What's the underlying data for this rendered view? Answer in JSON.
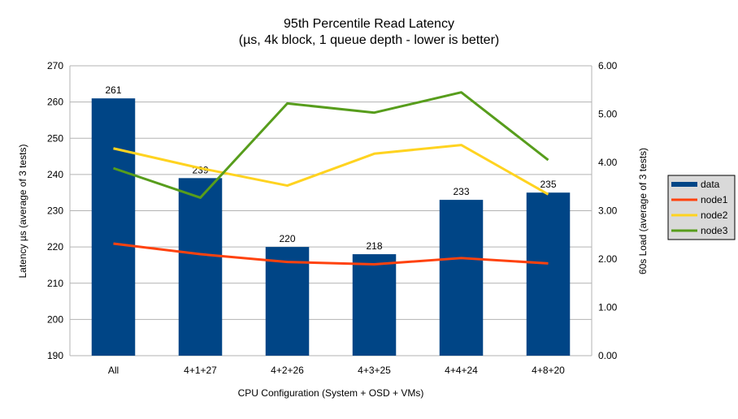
{
  "chart_data": {
    "type": "bar",
    "title": "95th Percentile Read Latency",
    "subtitle": "(µs, 4k block, 1 queue depth - lower is better)",
    "xlabel": "CPU Configuration (System + OSD + VMs)",
    "ylabel": "Latency µs (average of 3 tests)",
    "y2label": "60s Load (average of 3 tests)",
    "categories": [
      "All",
      "4+1+27",
      "4+2+26",
      "4+3+25",
      "4+4+24",
      "4+8+20"
    ],
    "ylim": [
      190,
      270
    ],
    "yticks": [
      "190",
      "200",
      "210",
      "220",
      "230",
      "240",
      "250",
      "260",
      "270"
    ],
    "y2lim": [
      0,
      6
    ],
    "y2ticks": [
      "0.00",
      "1.00",
      "2.00",
      "3.00",
      "4.00",
      "5.00",
      "6.00"
    ],
    "grid": true,
    "legend_position": "right",
    "bar_series": {
      "name": "data",
      "color": "#004586",
      "values": [
        261,
        239,
        220,
        218,
        233,
        235
      ],
      "labels": [
        "261",
        "239",
        "220",
        "218",
        "233",
        "235"
      ]
    },
    "line_series": [
      {
        "name": "node1",
        "color": "#ff420e",
        "axis": "right",
        "values": [
          2.32,
          2.1,
          1.94,
          1.89,
          2.02,
          1.91
        ]
      },
      {
        "name": "node2",
        "color": "#ffd320",
        "axis": "right",
        "values": [
          4.29,
          3.88,
          3.52,
          4.18,
          4.36,
          3.34
        ]
      },
      {
        "name": "node3",
        "color": "#579d1c",
        "axis": "right",
        "values": [
          3.88,
          3.27,
          5.22,
          5.03,
          5.45,
          4.05
        ]
      }
    ]
  }
}
